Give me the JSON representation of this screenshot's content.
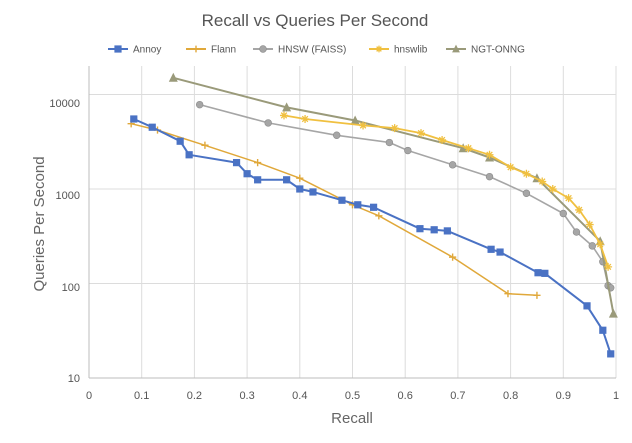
{
  "chart_data": {
    "type": "line",
    "title": "Recall vs Queries Per Second",
    "xlabel": "Recall",
    "ylabel": "Queries Per Second",
    "xlim": [
      0,
      1
    ],
    "ylim": [
      10,
      20000
    ],
    "yscale": "log",
    "grid": true,
    "legend_position": "top",
    "x_ticks": [
      "0",
      "0.1",
      "0.2",
      "0.3",
      "0.4",
      "0.5",
      "0.6",
      "0.7",
      "0.8",
      "0.9",
      "1"
    ],
    "y_ticks": [
      "10",
      "100",
      "1000",
      "10000"
    ],
    "series": [
      {
        "name": "Annoy",
        "color": "#4a72c4",
        "marker": "square",
        "x": [
          0.085,
          0.12,
          0.173,
          0.19,
          0.28,
          0.3,
          0.32,
          0.375,
          0.4,
          0.425,
          0.48,
          0.51,
          0.54,
          0.628,
          0.655,
          0.68,
          0.763,
          0.78,
          0.852,
          0.865,
          0.945,
          0.975,
          0.99
        ],
        "y": [
          5500,
          4500,
          3200,
          2300,
          1900,
          1450,
          1250,
          1250,
          1000,
          930,
          760,
          680,
          640,
          380,
          370,
          360,
          230,
          215,
          130,
          128,
          58,
          32,
          18
        ]
      },
      {
        "name": "Flann",
        "color": "#e0a83a",
        "marker": "plus",
        "x": [
          0.08,
          0.13,
          0.22,
          0.32,
          0.4,
          0.5,
          0.55,
          0.69,
          0.795,
          0.85
        ],
        "y": [
          4900,
          4200,
          2900,
          1900,
          1300,
          680,
          520,
          190,
          78,
          75
        ]
      },
      {
        "name": "HNSW (FAISS)",
        "color": "#a6a6a6",
        "marker": "circle",
        "x": [
          0.21,
          0.34,
          0.47,
          0.57,
          0.605,
          0.69,
          0.76,
          0.83,
          0.9,
          0.925,
          0.955,
          0.975,
          0.985,
          0.99
        ],
        "y": [
          7800,
          5000,
          3700,
          3100,
          2550,
          1800,
          1350,
          900,
          550,
          350,
          250,
          170,
          95,
          90
        ]
      },
      {
        "name": "hnswlib",
        "color": "#f0c040",
        "marker": "star",
        "x": [
          0.37,
          0.41,
          0.52,
          0.58,
          0.63,
          0.67,
          0.72,
          0.76,
          0.8,
          0.83,
          0.86,
          0.88,
          0.91,
          0.93,
          0.95,
          0.97,
          0.985
        ],
        "y": [
          6000,
          5500,
          4700,
          4400,
          3900,
          3300,
          2700,
          2300,
          1700,
          1450,
          1200,
          1000,
          800,
          600,
          420,
          260,
          150
        ]
      },
      {
        "name": "NGT-ONNG",
        "color": "#9a9a7a",
        "marker": "triangle",
        "x": [
          0.16,
          0.375,
          0.505,
          0.71,
          0.76,
          0.85,
          0.97,
          0.995
        ],
        "y": [
          15000,
          7300,
          5300,
          2700,
          2150,
          1300,
          280,
          48
        ]
      }
    ]
  }
}
